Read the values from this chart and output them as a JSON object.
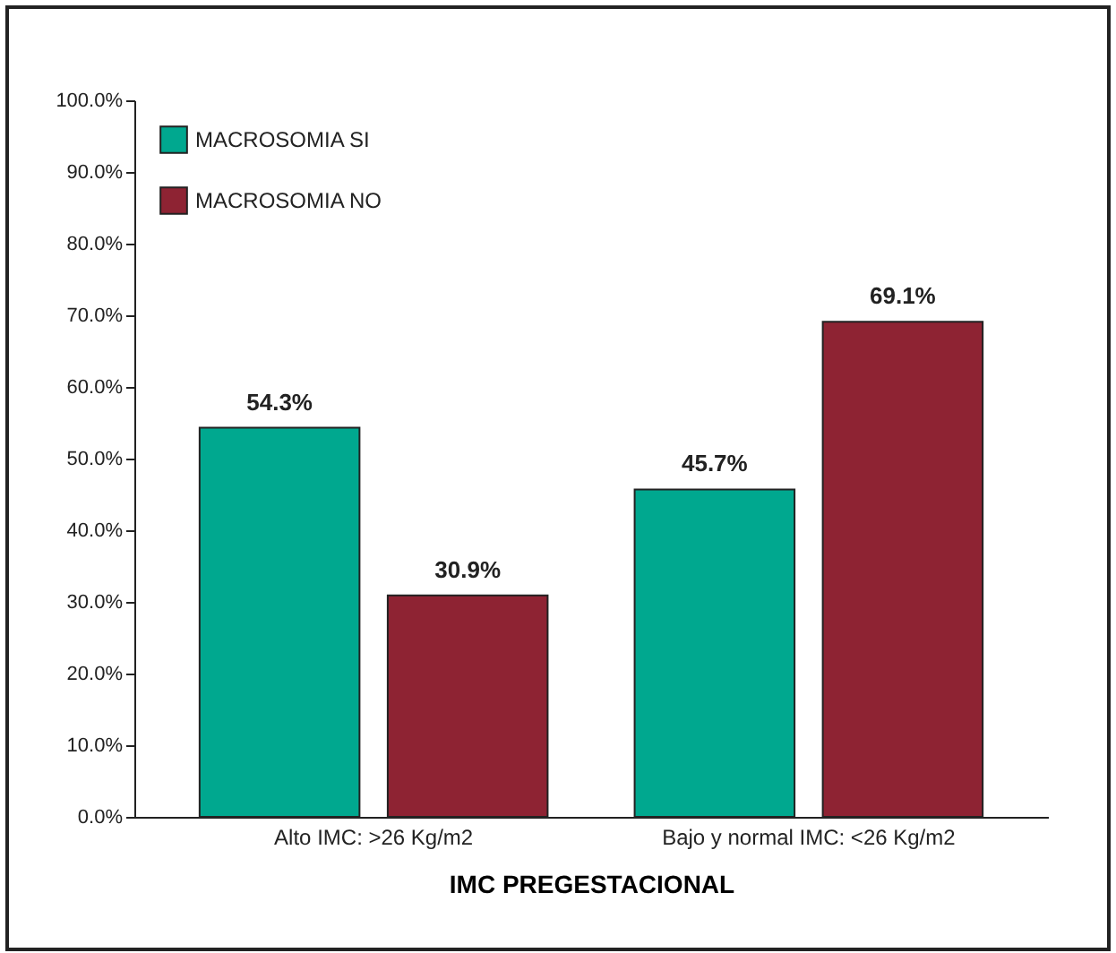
{
  "chart_data": {
    "type": "bar",
    "xlabel": "IMC PREGESTACIONAL",
    "categories": [
      "Alto IMC: >26 Kg/m2",
      "Bajo y normal IMC: <26 Kg/m2"
    ],
    "series": [
      {
        "name": "MACROSOMIA SI",
        "color": "#00a88f",
        "values": [
          54.3,
          45.7
        ],
        "value_labels": [
          "54.3%",
          "45.7%"
        ]
      },
      {
        "name": "MACROSOMIA NO",
        "color": "#8e2333",
        "values": [
          30.9,
          69.1
        ],
        "value_labels": [
          "30.9%",
          "69.1%"
        ]
      }
    ],
    "ylim": [
      0,
      100
    ],
    "yticks": [
      {
        "value": 0,
        "label": "0.0%"
      },
      {
        "value": 10,
        "label": "10.0%"
      },
      {
        "value": 20,
        "label": "20.0%"
      },
      {
        "value": 30,
        "label": "30.0%"
      },
      {
        "value": 40,
        "label": "40.0%"
      },
      {
        "value": 50,
        "label": "50.0%"
      },
      {
        "value": 60,
        "label": "60.0%"
      },
      {
        "value": 70,
        "label": "70.0%"
      },
      {
        "value": 80,
        "label": "80.0%"
      },
      {
        "value": 90,
        "label": "90.0%"
      },
      {
        "value": 100,
        "label": "100.0%"
      }
    ],
    "grid": false,
    "legend": "top left"
  }
}
